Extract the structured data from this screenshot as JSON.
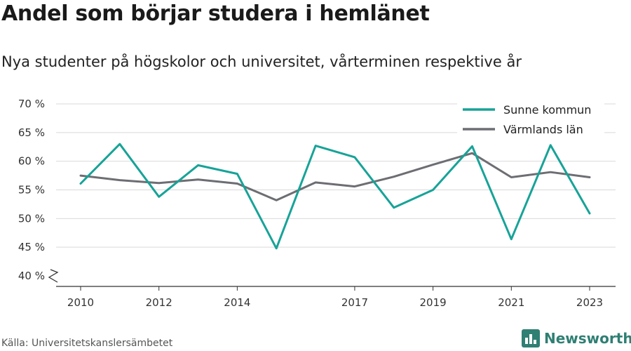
{
  "header": {
    "title": "Andel som börjar studera i hemlänet",
    "subtitle": "Nya studenter på högskolor och universitet, vårterminen respektive år"
  },
  "footer": {
    "source": "Källa: Universitetskanslersämbetet",
    "brand": "Newsworthy",
    "brand_icon": "bar-chart-logo-icon"
  },
  "chart_data": {
    "type": "line",
    "title": "Andel som börjar studera i hemlänet",
    "subtitle": "Nya studenter på högskolor och universitet, vårterminen respektive år",
    "xlabel": "",
    "ylabel": "",
    "x": [
      2010,
      2011,
      2012,
      2013,
      2014,
      2015,
      2016,
      2017,
      2018,
      2019,
      2020,
      2021,
      2022,
      2023
    ],
    "x_tick_labels": [
      "2010",
      "2012",
      "2014",
      "2017",
      "2019",
      "2021",
      "2023"
    ],
    "x_tick_values": [
      2010,
      2012,
      2014,
      2017,
      2019,
      2021,
      2023
    ],
    "y_tick_labels": [
      "40 %",
      "45 %",
      "50 %",
      "55 %",
      "60 %",
      "65 %",
      "70 %"
    ],
    "y_tick_values": [
      40,
      45,
      50,
      55,
      60,
      65,
      70
    ],
    "ylim": [
      40,
      70
    ],
    "y_axis_break": true,
    "grid": true,
    "legend_position": "top-right",
    "series": [
      {
        "name": "Sunne kommun",
        "color": "#17a398",
        "values": [
          56.1,
          63.0,
          53.8,
          59.3,
          57.8,
          44.8,
          62.7,
          60.7,
          51.9,
          55.0,
          62.6,
          46.4,
          62.8,
          50.9
        ]
      },
      {
        "name": "Värmlands län",
        "color": "#6d6e73",
        "values": [
          57.5,
          56.7,
          56.2,
          56.8,
          56.1,
          53.2,
          56.3,
          55.6,
          57.3,
          59.4,
          61.4,
          57.2,
          58.1,
          57.2
        ]
      }
    ]
  }
}
